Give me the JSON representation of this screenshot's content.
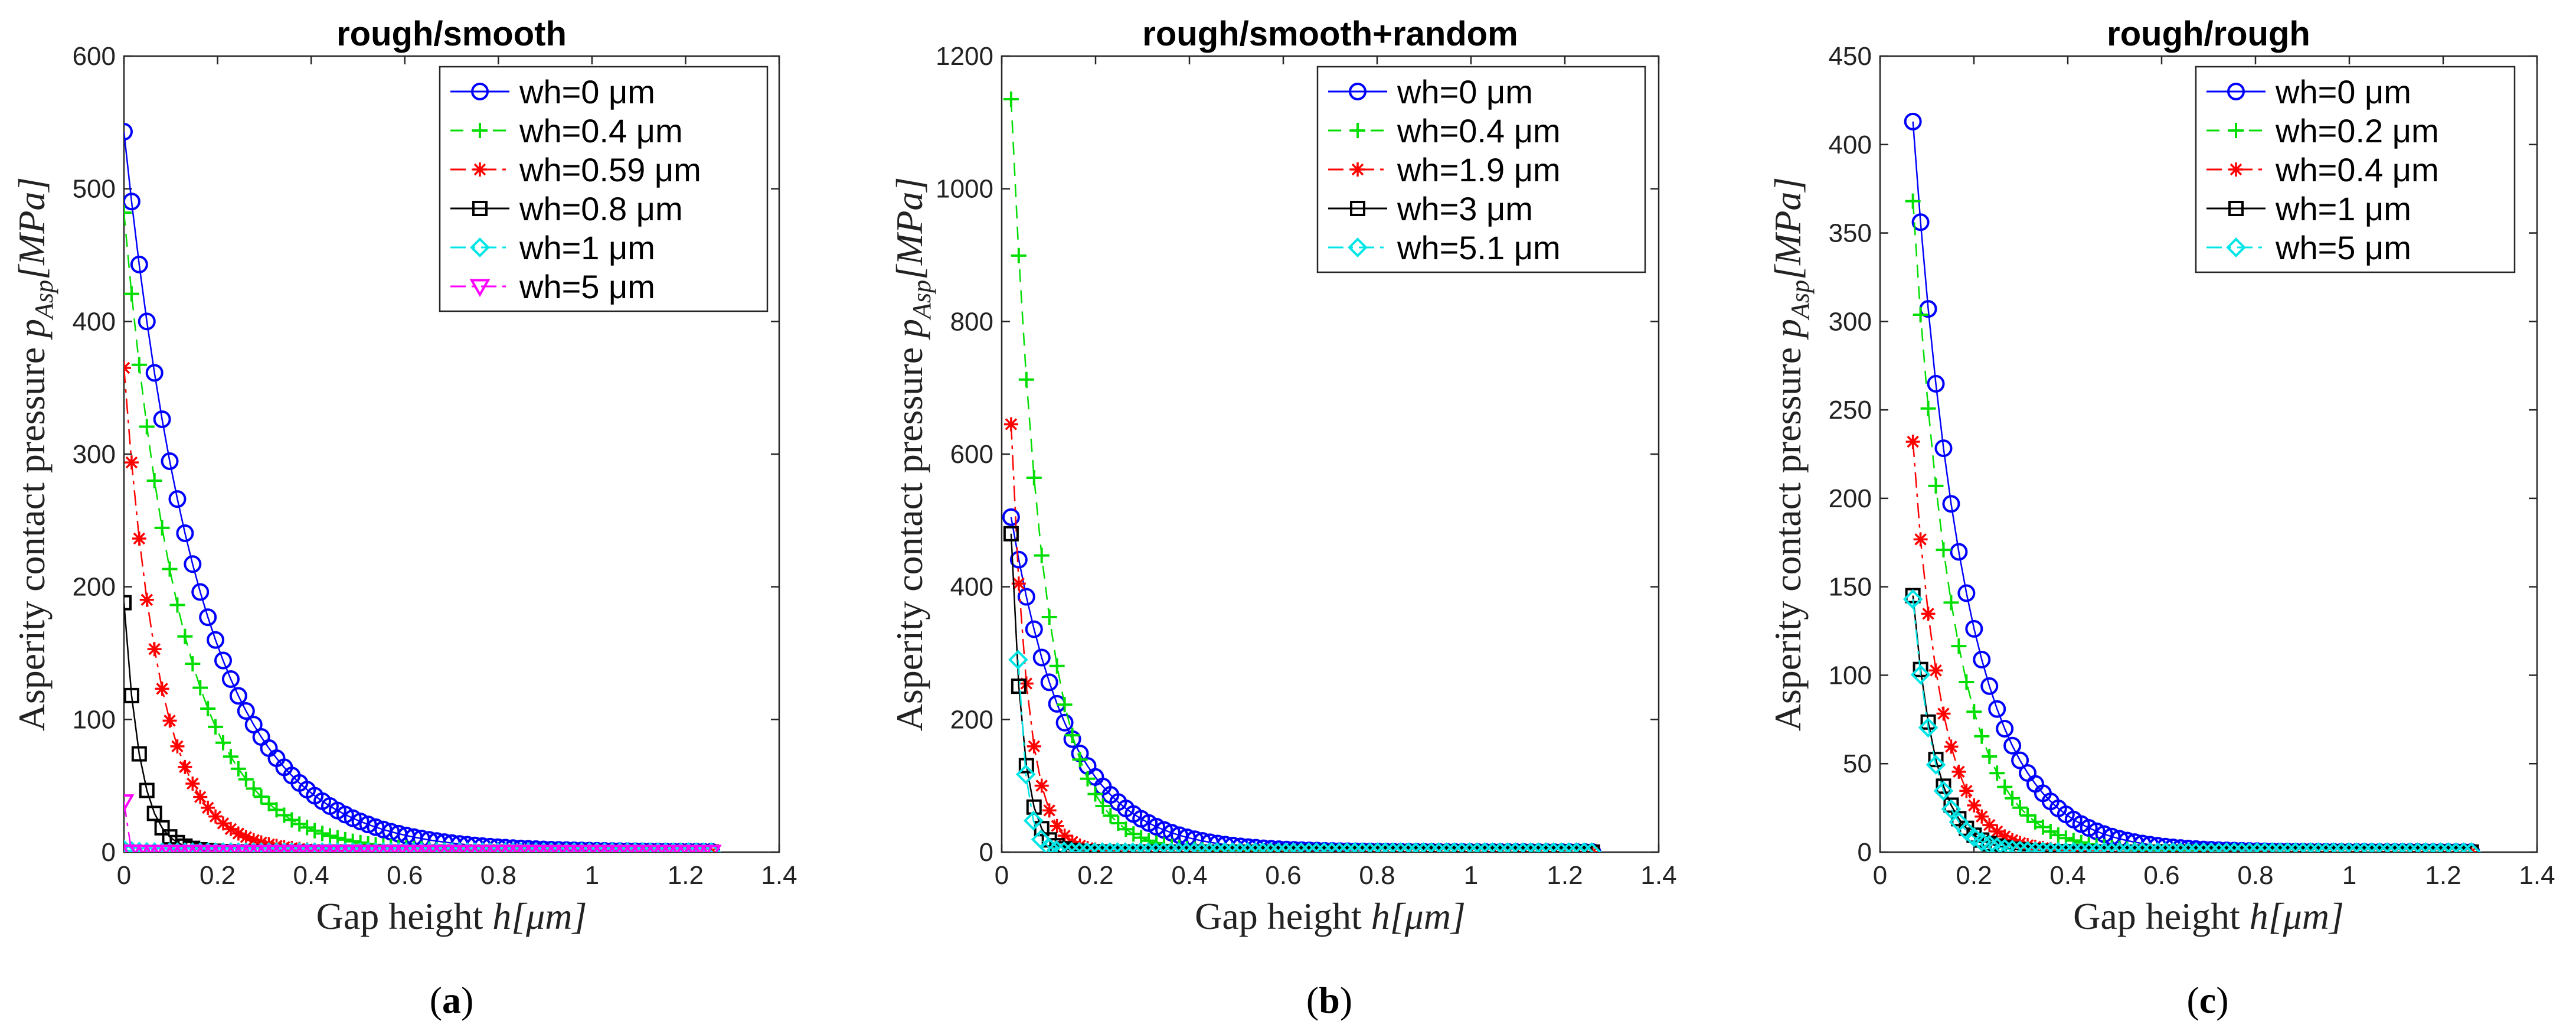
{
  "figure": {
    "panel_labels": [
      {
        "open": "(",
        "letter": "a",
        "close": ")"
      },
      {
        "open": "(",
        "letter": "b",
        "close": ")"
      },
      {
        "open": "(",
        "letter": "c",
        "close": ")"
      }
    ]
  },
  "colors": {
    "blue": "#0000ff",
    "green": "#00dd00",
    "red": "#ff0000",
    "black": "#000000",
    "cyan": "#00e5e5",
    "magenta": "#ff00ff"
  },
  "chart_data": [
    {
      "type": "line",
      "title": "rough/smooth",
      "xlabel_text": "Gap height ",
      "xlabel_math": "h[μm]",
      "ylabel_text": "Asperity contact pressure ",
      "ylabel_math": "p",
      "ylabel_sub": "Asp",
      "ylabel_unit": "[MPa]",
      "xlim": [
        0,
        1.4
      ],
      "ylim": [
        0,
        600
      ],
      "xticks": [
        0,
        0.2,
        0.4,
        0.6,
        0.8,
        1,
        1.2,
        1.4
      ],
      "yticks": [
        0,
        100,
        200,
        300,
        400,
        500,
        600
      ],
      "x_end": 1.27,
      "dx": 0.0163,
      "series": [
        {
          "name": "wh=0 μm",
          "color": "blue",
          "marker": "circle",
          "dash": "solid",
          "x0": 0.0,
          "p0": 543,
          "decay": 0.16
        },
        {
          "name": "wh=0.4 μm",
          "color": "green",
          "marker": "plus",
          "dash": "dash",
          "x0": 0.0,
          "p0": 482,
          "decay": 0.12
        },
        {
          "name": "wh=0.59 μm",
          "color": "red",
          "marker": "star",
          "dash": "dashdot",
          "x0": 0.0,
          "p0": 365,
          "decay": 0.075
        },
        {
          "name": "wh=0.8 μm",
          "color": "black",
          "marker": "square",
          "dash": "solid",
          "x0": 0.0,
          "p0": 188,
          "decay": 0.035
        },
        {
          "name": "wh=1 μm",
          "color": "cyan",
          "marker": "diamond",
          "dash": "dashdot",
          "x0": 0.0,
          "p0": 2,
          "decay": 0.02
        },
        {
          "name": "wh=5 μm",
          "color": "magenta",
          "marker": "triangle",
          "dash": "dashdot",
          "x0": 0.0,
          "p0": 38,
          "decay": 0.003
        }
      ]
    },
    {
      "type": "line",
      "title": "rough/smooth+random",
      "xlabel_text": "Gap height ",
      "xlabel_math": "h[μm]",
      "ylabel_text": "Asperity contact pressure ",
      "ylabel_math": "p",
      "ylabel_sub": "Asp",
      "ylabel_unit": "[MPa]",
      "xlim": [
        0,
        1.4
      ],
      "ylim": [
        0,
        1200
      ],
      "xticks": [
        0,
        0.2,
        0.4,
        0.6,
        0.8,
        1,
        1.2,
        1.4
      ],
      "yticks": [
        0,
        200,
        400,
        600,
        800,
        1000,
        1200
      ],
      "x_end": 1.27,
      "dx": 0.0163,
      "series": [
        {
          "name": "wh=0 μm",
          "color": "blue",
          "marker": "circle",
          "dash": "solid",
          "x0": 0.02,
          "p0": 505,
          "decay": 0.12
        },
        {
          "name": "wh=0.4 μm",
          "color": "green",
          "marker": "plus",
          "dash": "dash",
          "x0": 0.02,
          "p0": 1135,
          "decay": 0.07
        },
        {
          "name": "wh=1.9 μm",
          "color": "red",
          "marker": "star",
          "dash": "dashdot",
          "x0": 0.02,
          "p0": 645,
          "decay": 0.035
        },
        {
          "name": "wh=3 μm",
          "color": "black",
          "marker": "square",
          "dash": "solid",
          "x0": 0.02,
          "p0": 480,
          "decay": 0.025
        },
        {
          "name": "wh=5.1 μm",
          "color": "cyan",
          "marker": "diamond",
          "dash": "dashdot",
          "x0": 0.035,
          "p0": 290,
          "decay": 0.018
        }
      ]
    },
    {
      "type": "line",
      "title": "rough/rough",
      "xlabel_text": "Gap height ",
      "xlabel_math": "h[μm]",
      "ylabel_text": "Asperity contact pressure ",
      "ylabel_math": "p",
      "ylabel_sub": "Asp",
      "ylabel_unit": "[MPa]",
      "xlim": [
        0,
        1.4
      ],
      "ylim": [
        0,
        450
      ],
      "xticks": [
        0,
        0.2,
        0.4,
        0.6,
        0.8,
        1,
        1.2,
        1.4
      ],
      "yticks": [
        0,
        50,
        100,
        150,
        200,
        250,
        300,
        350,
        400,
        450
      ],
      "x_end": 1.27,
      "dx": 0.0163,
      "series": [
        {
          "name": "wh=0 μm",
          "color": "blue",
          "marker": "circle",
          "dash": "solid",
          "x0": 0.07,
          "p0": 413,
          "decay": 0.11
        },
        {
          "name": "wh=0.2 μm",
          "color": "green",
          "marker": "plus",
          "dash": "dash",
          "x0": 0.07,
          "p0": 368,
          "decay": 0.085
        },
        {
          "name": "wh=0.4 μm",
          "color": "red",
          "marker": "star",
          "dash": "dashdot",
          "x0": 0.07,
          "p0": 232,
          "decay": 0.06
        },
        {
          "name": "wh=1 μm",
          "color": "black",
          "marker": "square",
          "dash": "solid",
          "x0": 0.07,
          "p0": 145,
          "decay": 0.048
        },
        {
          "name": "wh=5 μm",
          "color": "cyan",
          "marker": "diamond",
          "dash": "dashdot",
          "x0": 0.07,
          "p0": 143,
          "decay": 0.046
        }
      ]
    }
  ]
}
